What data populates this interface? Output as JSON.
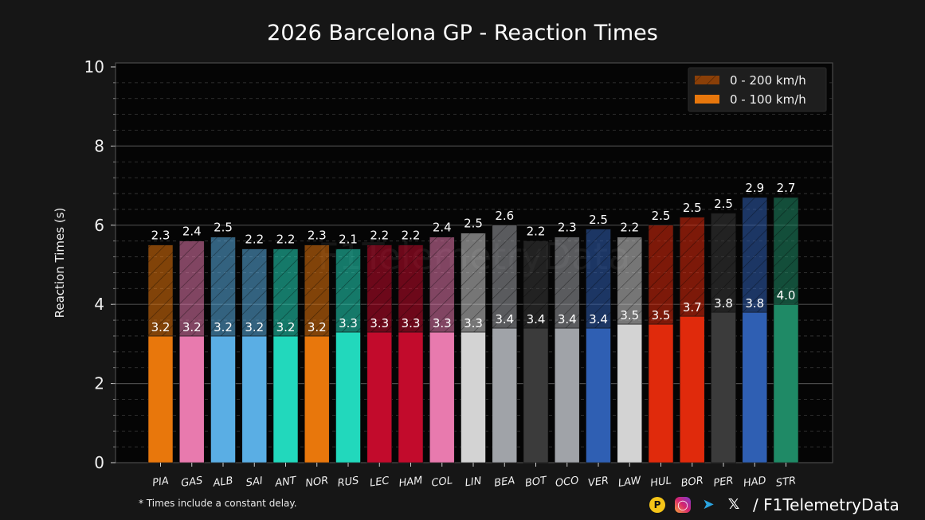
{
  "chart_data": {
    "type": "bar",
    "title": "2026 Barcelona GP - Reaction Times",
    "ylabel": "Reaction Times (s)",
    "xlabel": "",
    "ylim": [
      0,
      10
    ],
    "yticks": [
      "0",
      "2",
      "4",
      "6",
      "8",
      "10"
    ],
    "grid": true,
    "legend_position": "top-right",
    "categories": [
      "PIA",
      "GAS",
      "ALB",
      "SAI",
      "ANT",
      "NOR",
      "RUS",
      "LEC",
      "HAM",
      "COL",
      "LIN",
      "BEA",
      "BOT",
      "OCO",
      "VER",
      "LAW",
      "HUL",
      "BOR",
      "PER",
      "HAD",
      "STR"
    ],
    "series": [
      {
        "name": "0 - 100 km/h",
        "values": [
          3.2,
          3.2,
          3.2,
          3.2,
          3.2,
          3.2,
          3.3,
          3.3,
          3.3,
          3.3,
          3.3,
          3.4,
          3.4,
          3.4,
          3.4,
          3.5,
          3.5,
          3.7,
          3.8,
          3.8,
          4.0
        ]
      },
      {
        "name": "0 - 200 km/h",
        "values": [
          2.3,
          2.4,
          2.5,
          2.2,
          2.2,
          2.3,
          2.1,
          2.2,
          2.2,
          2.4,
          2.5,
          2.6,
          2.2,
          2.3,
          2.5,
          2.2,
          2.5,
          2.5,
          2.5,
          2.9,
          2.7
        ]
      }
    ],
    "bar_colors": [
      "#e8770c",
      "#e87aae",
      "#5aaee4",
      "#5aaee4",
      "#22d8bc",
      "#e8770c",
      "#22d8bc",
      "#c20b2c",
      "#c20b2c",
      "#e87aae",
      "#d3d3d3",
      "#a0a3a8",
      "#3b3b3b",
      "#a0a3a8",
      "#2f5fb3",
      "#d3d3d3",
      "#e02a0c",
      "#e02a0c",
      "#3b3b3b",
      "#2f5fb3",
      "#1f8a66"
    ],
    "legend_colors": {
      "0 - 200 km/h": "#8a3f08",
      "0 - 100 km/h": "#e8770c"
    }
  },
  "watermark": "F1TelemetryData",
  "footnote": "* Times include a constant delay.",
  "footer": {
    "handle": "/ F1TelemetryData",
    "icons": [
      "patreon-icon",
      "instagram-icon",
      "telegram-icon",
      "x-icon"
    ]
  }
}
